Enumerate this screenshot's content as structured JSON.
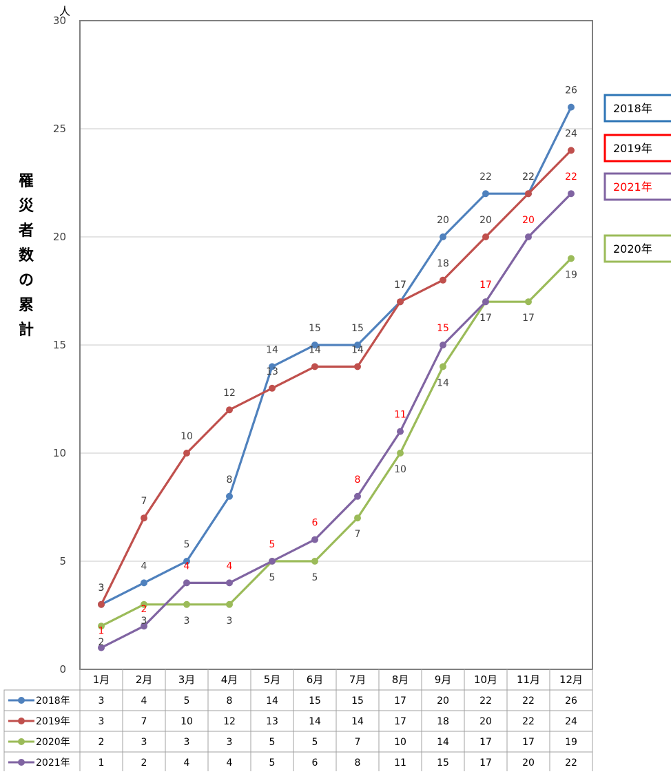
{
  "chart_data": {
    "type": "line",
    "categories": [
      "1月",
      "2月",
      "3月",
      "4月",
      "5月",
      "6月",
      "7月",
      "8月",
      "9月",
      "10月",
      "11月",
      "12月"
    ],
    "ylabel": "罹災者数の累計",
    "yunit": "人",
    "ylim": [
      0,
      30
    ],
    "yticks": [
      0,
      5,
      10,
      15,
      20,
      25,
      30
    ],
    "grid": true,
    "legend": "right, boxed labels",
    "data_table": true,
    "series": [
      {
        "name": "2018年",
        "values": [
          3,
          4,
          5,
          8,
          14,
          15,
          15,
          17,
          20,
          22,
          22,
          26
        ],
        "color": "#4F81BD",
        "label_color": "#404040",
        "legend_border": "#2E75B6",
        "legend_text": "#000000"
      },
      {
        "name": "2019年",
        "values": [
          3,
          7,
          10,
          12,
          13,
          14,
          14,
          17,
          18,
          20,
          22,
          24
        ],
        "color": "#C0504D",
        "label_color": "#404040",
        "legend_border": "#FF0000",
        "legend_text": "#000000"
      },
      {
        "name": "2020年",
        "values": [
          2,
          3,
          3,
          3,
          5,
          5,
          7,
          10,
          14,
          17,
          17,
          19
        ],
        "color": "#9BBB59",
        "label_color": "#404040",
        "legend_border": "#9BBB59",
        "legend_text": "#000000"
      },
      {
        "name": "2021年",
        "values": [
          1,
          2,
          4,
          4,
          5,
          6,
          8,
          11,
          15,
          17,
          20,
          22
        ],
        "color": "#8064A2",
        "label_color": "#FF0000",
        "legend_border": "#8064A2",
        "legend_text": "#FF0000"
      }
    ]
  }
}
